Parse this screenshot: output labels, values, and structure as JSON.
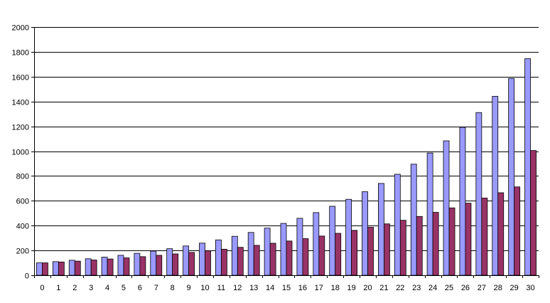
{
  "chart_data": {
    "type": "bar",
    "categories": [
      "0",
      "1",
      "2",
      "3",
      "4",
      "5",
      "6",
      "7",
      "8",
      "9",
      "10",
      "11",
      "12",
      "13",
      "14",
      "15",
      "16",
      "17",
      "18",
      "19",
      "20",
      "21",
      "22",
      "23",
      "24",
      "25",
      "26",
      "27",
      "28",
      "29",
      "30"
    ],
    "series": [
      {
        "values": [
          100,
          110,
          121,
          133,
          146,
          161,
          177,
          195,
          214,
          236,
          259,
          285,
          314,
          345,
          380,
          418,
          459,
          505,
          556,
          612,
          673,
          740,
          814,
          895,
          985,
          1083,
          1192,
          1311,
          1442,
          1586,
          1745
        ],
        "color": "#9999ff"
      },
      {
        "values": [
          100,
          107,
          114,
          123,
          131,
          140,
          150,
          161,
          172,
          184,
          197,
          210,
          225,
          241,
          258,
          276,
          295,
          316,
          338,
          362,
          387,
          414,
          443,
          474,
          507,
          543,
          581,
          622,
          665,
          712,
          1005
        ],
        "color": "#993366"
      }
    ],
    "yticks": [
      "0",
      "200",
      "400",
      "600",
      "800",
      "1000",
      "1200",
      "1400",
      "1600",
      "1800",
      "2000"
    ],
    "ylim": [
      0,
      2000
    ],
    "grid": true,
    "legend": "none"
  }
}
